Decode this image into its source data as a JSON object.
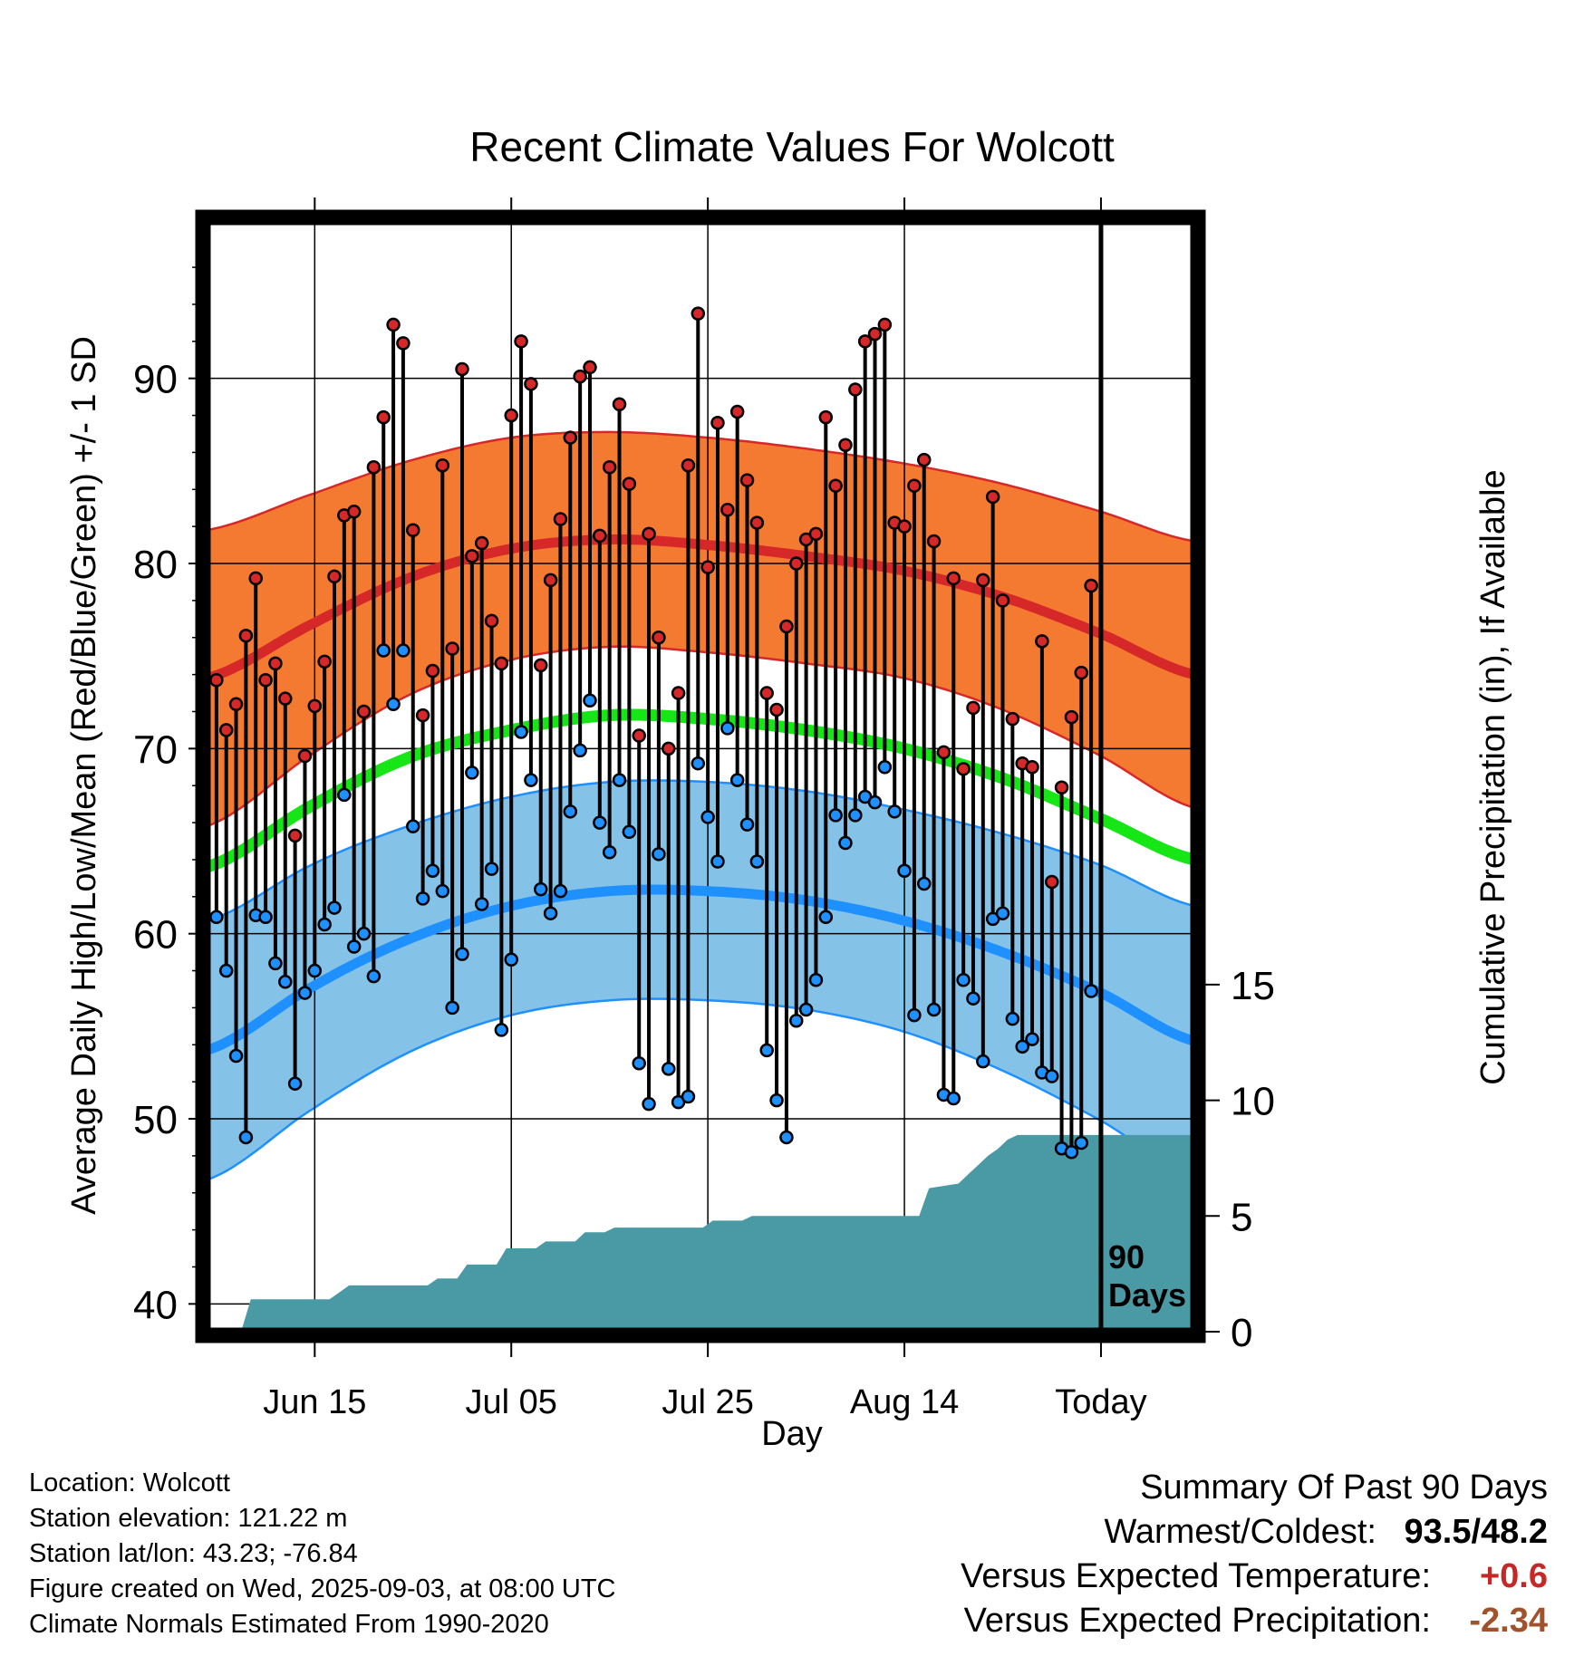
{
  "chart_data": {
    "type": "line",
    "title": "Recent Climate Values For Wolcott",
    "xlabel": "Day",
    "ylabel": "Average Daily High/Low/Mean (Red/Blue/Green) +/- 1 SD",
    "ylabel_right": "Cumulative Precipitation (in), If Available",
    "ylim": [
      38.5,
      98.5
    ],
    "ylim_right": [
      0,
      48
    ],
    "yticks": [
      40,
      50,
      60,
      70,
      80,
      90
    ],
    "yticks_right": [
      0,
      5,
      10,
      15
    ],
    "xlim_days": [
      -91,
      9.5
    ],
    "xticks": [
      {
        "label": "Jun 15",
        "day": -80
      },
      {
        "label": "Jul 05",
        "day": -60
      },
      {
        "label": "Jul 25",
        "day": -40
      },
      {
        "label": "Aug 14",
        "day": -20
      },
      {
        "label": "Today",
        "day": 0
      }
    ],
    "today_marker": {
      "day": 0,
      "label_line1": "90",
      "label_line2": "Days"
    },
    "grid": true,
    "normals": {
      "day": [
        -91,
        -80,
        -70,
        -60,
        -50,
        -40,
        -30,
        -20,
        -10,
        0,
        9.5
      ],
      "high_mean": [
        73.8,
        76.8,
        79.3,
        80.8,
        81.3,
        81.0,
        80.4,
        79.6,
        78.2,
        76.2,
        74.0
      ],
      "high_sd": [
        8.0,
        7.0,
        6.3,
        6.0,
        5.8,
        5.8,
        5.8,
        5.8,
        6.1,
        6.6,
        7.2
      ],
      "mean": [
        63.6,
        67.0,
        69.6,
        71.0,
        71.8,
        71.6,
        71.0,
        70.0,
        68.4,
        66.2,
        64.0
      ],
      "low_mean": [
        53.7,
        57.2,
        59.8,
        61.5,
        62.3,
        62.3,
        61.8,
        60.7,
        59.0,
        56.8,
        54.2
      ],
      "low_sd": [
        7.0,
        6.6,
        6.1,
        5.9,
        5.9,
        5.9,
        5.9,
        6.0,
        6.4,
        6.9,
        7.3
      ],
      "high_color": "#d62828",
      "high_band_color": "#f47a32",
      "mean_color": "#16e516",
      "low_color": "#1e90ff",
      "low_band_color": "#84c2e8"
    },
    "series": [
      {
        "name": "High",
        "color": "#d62828",
        "start_day": -90,
        "values": [
          73.7,
          71.0,
          72.4,
          76.1,
          79.2,
          73.7,
          74.6,
          72.7,
          65.3,
          69.6,
          72.3,
          74.7,
          79.3,
          82.6,
          82.8,
          72.0,
          85.2,
          87.9,
          92.9,
          91.9,
          81.8,
          71.8,
          74.2,
          85.3,
          75.4,
          90.5,
          80.4,
          81.1,
          76.9,
          74.6,
          88.0,
          92.0,
          89.7,
          74.5,
          79.1,
          82.4,
          86.8,
          90.1,
          90.6,
          81.5,
          85.2,
          88.6,
          84.3,
          70.7,
          81.6,
          76.0,
          70.0,
          73.0,
          85.3,
          93.5,
          79.8,
          87.6,
          82.9,
          88.2,
          84.5,
          82.2,
          73.0,
          72.1,
          76.6,
          80.0,
          81.3,
          81.6,
          87.9,
          84.2,
          86.4,
          89.4,
          92.0,
          92.4,
          92.9,
          82.2,
          82.0,
          84.2,
          85.6,
          81.2,
          69.8,
          79.2,
          68.9,
          72.2,
          79.1,
          83.6,
          78.0,
          71.6,
          69.2,
          69.0,
          75.8,
          62.8,
          67.9,
          71.7,
          74.1,
          78.8
        ]
      },
      {
        "name": "Low",
        "color": "#1e90ff",
        "start_day": -90,
        "values": [
          60.9,
          58.0,
          53.4,
          49.0,
          61.0,
          60.9,
          58.4,
          57.4,
          51.9,
          56.8,
          58.0,
          60.5,
          61.4,
          67.5,
          59.3,
          60.0,
          57.7,
          75.3,
          72.4,
          75.3,
          65.8,
          61.9,
          63.4,
          62.3,
          56.0,
          58.9,
          68.7,
          61.6,
          63.5,
          54.8,
          58.6,
          70.9,
          68.3,
          62.4,
          61.1,
          62.3,
          66.6,
          69.9,
          72.6,
          66.0,
          64.4,
          68.3,
          65.5,
          53.0,
          50.8,
          64.3,
          52.7,
          50.9,
          51.2,
          69.2,
          66.3,
          63.9,
          71.1,
          68.3,
          65.9,
          63.9,
          53.7,
          51.0,
          49.0,
          55.3,
          55.9,
          57.5,
          60.9,
          66.4,
          64.9,
          66.4,
          67.4,
          67.1,
          69.0,
          66.6,
          63.4,
          55.6,
          62.7,
          55.9,
          51.3,
          51.1,
          57.5,
          56.5,
          53.1,
          60.8,
          61.1,
          55.4,
          53.9,
          54.3,
          52.5,
          52.3,
          48.4,
          48.2,
          48.7,
          56.9
        ]
      },
      {
        "name": "Cumulative Precipitation",
        "color": "#4a9aa5",
        "axis": "right",
        "day": [
          -91,
          -87.5,
          -86.5,
          -78.5,
          -77.5,
          -76.5,
          -68.5,
          -67.5,
          -65.5,
          -64.5,
          -61.5,
          -60.5,
          -57.5,
          -56.5,
          -53.5,
          -52.5,
          -50.5,
          -49.5,
          -40.5,
          -39.5,
          -36.5,
          -35.5,
          -18.5,
          -17.5,
          -14.5,
          -13.5,
          -12.5,
          -11.5,
          -10.5,
          -9.5,
          -8.5,
          -7.5,
          -6.5,
          -5.5,
          -4.5,
          9.5
        ],
        "values": [
          0,
          0,
          1.4,
          1.4,
          1.7,
          2.0,
          2.0,
          2.3,
          2.3,
          2.9,
          2.9,
          3.6,
          3.6,
          3.9,
          3.9,
          4.3,
          4.3,
          4.5,
          4.5,
          4.8,
          4.8,
          5.0,
          5.0,
          6.2,
          6.4,
          6.8,
          7.2,
          7.6,
          7.9,
          8.3,
          8.5,
          8.5,
          8.5,
          8.5,
          8.5,
          8.5
        ]
      }
    ]
  },
  "footer": {
    "location": "Location: Wolcott",
    "elevation": "Station elevation: 121.22 m",
    "latlon": "Station lat/lon: 43.23; -76.84",
    "created": "Figure created on Wed, 2025-09-03, at 08:00 UTC",
    "normals_period": "Climate Normals Estimated From 1990-2020"
  },
  "summary": {
    "heading": "Summary Of Past 90 Days",
    "warmest_coldest_label": "Warmest/Coldest:",
    "warmest": "93.5",
    "coldest": "48.2",
    "temp_label": "Versus Expected Temperature:",
    "temp_value": "+0.6",
    "temp_color": "#c62828",
    "precip_label": "Versus Expected Precipitation:",
    "precip_value": "-2.34",
    "precip_color": "#a0522d"
  }
}
